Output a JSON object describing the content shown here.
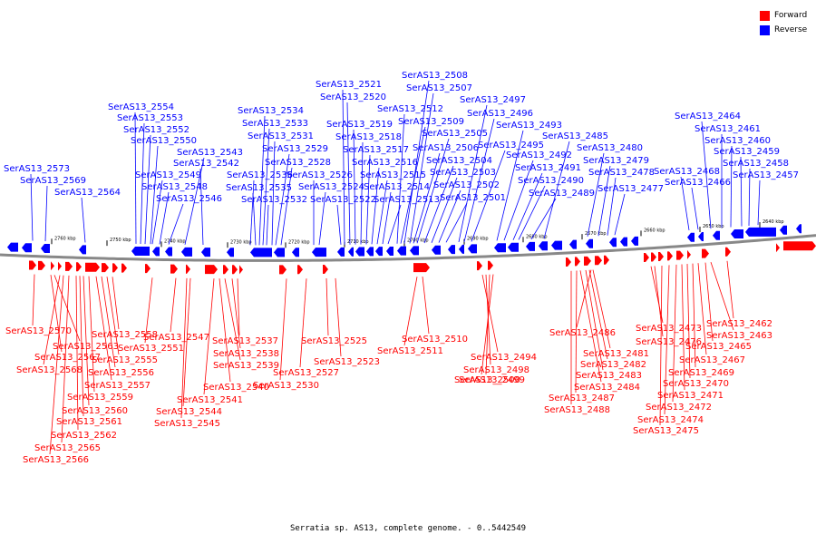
{
  "legend": {
    "forward": {
      "label": "Forward",
      "color": "#ff0000"
    },
    "reverse": {
      "label": "Reverse",
      "color": "#0000ff"
    }
  },
  "caption": "Serratia sp. AS13, complete genome. - 0..5442549",
  "ticks": [
    "2760 kbp",
    "2750 kbp",
    "2740 kbp",
    "2730 kbp",
    "2720 kbp",
    "2710 kbp",
    "2700 kbp",
    "2690 kbp",
    "2680 kbp",
    "2670 kbp",
    "2660 kbp",
    "2650 kbp",
    "2640 kbp"
  ],
  "reverse_labels": [
    "SerAS13_2573",
    "SerAS13_2569",
    "SerAS13_2564",
    "SerAS13_2554",
    "SerAS13_2553",
    "SerAS13_2552",
    "SerAS13_2550",
    "SerAS13_2549",
    "SerAS13_2548",
    "SerAS13_2546",
    "SerAS13_2543",
    "SerAS13_2542",
    "SerAS13_2536",
    "SerAS13_2535",
    "SerAS13_2534",
    "SerAS13_2533",
    "SerAS13_2532",
    "SerAS13_2531",
    "SerAS13_2529",
    "SerAS13_2528",
    "SerAS13_2526",
    "SerAS13_2524",
    "SerAS13_2522",
    "SerAS13_2521",
    "SerAS13_2520",
    "SerAS13_2519",
    "SerAS13_2518",
    "SerAS13_2517",
    "SerAS13_2516",
    "SerAS13_2515",
    "SerAS13_2514",
    "SerAS13_2513",
    "SerAS13_2512",
    "SerAS13_2509",
    "SerAS13_2508",
    "SerAS13_2507",
    "SerAS13_2506",
    "SerAS13_2505",
    "SerAS13_2504",
    "SerAS13_2503",
    "SerAS13_2502",
    "SerAS13_2501",
    "SerAS13_2497",
    "SerAS13_2496",
    "SerAS13_2495",
    "SerAS13_2493",
    "SerAS13_2492",
    "SerAS13_2491",
    "SerAS13_2490",
    "SerAS13_2489",
    "SerAS13_2485",
    "SerAS13_2480",
    "SerAS13_2479",
    "SerAS13_2478",
    "SerAS13_2477",
    "SerAS13_2468",
    "SerAS13_2466",
    "SerAS13_2464",
    "SerAS13_2461",
    "SerAS13_2460",
    "SerAS13_2459",
    "SerAS13_2458",
    "SerAS13_2457"
  ],
  "forward_labels": [
    "SerAS13_2570",
    "SerAS13_2563",
    "SerAS13_2567",
    "SerAS13_2568",
    "SerAS13_2558",
    "SerAS13_2555",
    "SerAS13_2556",
    "SerAS13_2557",
    "SerAS13_2559",
    "SerAS13_2560",
    "SerAS13_2561",
    "SerAS13_2562",
    "SerAS13_2565",
    "SerAS13_2566",
    "SerAS13_2547",
    "SerAS13_2551",
    "SerAS13_2537",
    "SerAS13_2538",
    "SerAS13_2539",
    "SerAS13_2540",
    "SerAS13_2541",
    "SerAS13_2544",
    "SerAS13_2545",
    "SerAS13_2525",
    "SerAS13_2523",
    "SerAS13_2527",
    "SerAS13_2530",
    "SerAS13_2510",
    "SerAS13_2511",
    "SerAS13_2494",
    "SerAS13_2498",
    "SerAS13_2499",
    "SerAS13_2500",
    "SerAS13_2486",
    "SerAS13_2481",
    "SerAS13_2482",
    "SerAS13_2483",
    "SerAS13_2484",
    "SerAS13_2487",
    "SerAS13_2488",
    "SerAS13_2473",
    "SerAS13_2476",
    "SerAS13_2462",
    "SerAS13_2463",
    "SerAS13_2465",
    "SerAS13_2467",
    "SerAS13_2469",
    "SerAS13_2470",
    "SerAS13_2471",
    "SerAS13_2472",
    "SerAS13_2474",
    "SerAS13_2475"
  ]
}
